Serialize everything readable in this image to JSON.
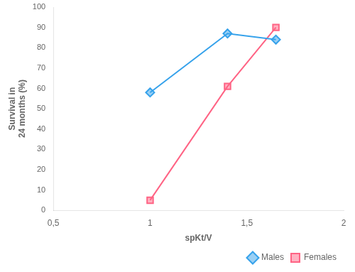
{
  "chart_data": {
    "type": "line",
    "xlabel": "spKt/V",
    "ylabel": [
      "Survival in",
      "24 months (%)"
    ],
    "series": [
      {
        "name": "Males",
        "marker": "diamond",
        "x": [
          1.0,
          1.4,
          1.65
        ],
        "values": [
          58,
          87,
          84
        ]
      },
      {
        "name": "Females",
        "marker": "square",
        "x": [
          1.0,
          1.4,
          1.65
        ],
        "values": [
          5,
          61,
          90
        ]
      }
    ],
    "xlim": [
      0.5,
      2.0
    ],
    "xticks": [
      {
        "value": 0.5,
        "label": "0,5"
      },
      1,
      {
        "value": 1.5,
        "label": "1,5"
      },
      2
    ],
    "ylim": [
      0,
      100
    ],
    "yticks": [
      0,
      10,
      20,
      30,
      40,
      50,
      60,
      70,
      80,
      90,
      100
    ],
    "grid": false,
    "legend": "lower right"
  }
}
